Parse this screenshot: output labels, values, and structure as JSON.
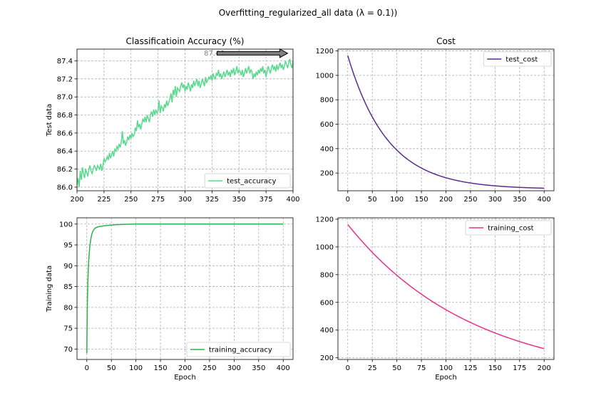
{
  "figure": {
    "suptitle": "Overfitting_regularized_all data (λ = 0.1))"
  },
  "chart_data": [
    {
      "id": "p1",
      "type": "line",
      "title": "Classificatioin Accuracy (%)",
      "xlabel": "",
      "ylabel": "Test data",
      "xlim": [
        200,
        400
      ],
      "ylim": [
        85.96,
        87.53
      ],
      "xticks": [
        200,
        225,
        250,
        275,
        300,
        325,
        350,
        375,
        400
      ],
      "yticks": [
        86.0,
        86.2,
        86.4,
        86.6,
        86.8,
        87.0,
        87.2,
        87.4
      ],
      "ytick_decimals": 1,
      "grid": true,
      "legend": "lower right",
      "series": [
        {
          "name": "test_accuracy",
          "color": "#59d98e",
          "x_start": 200,
          "x_step": 1,
          "values": [
            86.02,
            86.1,
            86.0,
            86.18,
            86.08,
            86.22,
            86.15,
            86.1,
            86.2,
            86.16,
            86.12,
            86.2,
            86.24,
            86.18,
            86.15,
            86.2,
            86.24,
            86.22,
            86.18,
            86.24,
            86.22,
            86.2,
            86.26,
            86.18,
            86.24,
            86.32,
            86.28,
            86.3,
            86.34,
            86.3,
            86.38,
            86.32,
            86.36,
            86.4,
            86.34,
            86.42,
            86.4,
            86.45,
            86.42,
            86.48,
            86.44,
            86.5,
            86.62,
            86.48,
            86.52,
            86.46,
            86.5,
            86.56,
            86.52,
            86.58,
            86.54,
            86.6,
            86.56,
            86.58,
            86.66,
            86.62,
            86.74,
            86.66,
            86.7,
            86.64,
            86.7,
            86.76,
            86.72,
            86.78,
            86.72,
            86.8,
            86.76,
            86.72,
            86.8,
            86.84,
            86.78,
            86.86,
            86.8,
            86.86,
            86.82,
            86.84,
            86.96,
            86.82,
            86.9,
            86.88,
            86.84,
            86.92,
            86.88,
            86.96,
            86.9,
            86.94,
            86.98,
            87.04,
            86.94,
            87.08,
            87.02,
            87.12,
            87.0,
            87.1,
            87.08,
            87.06,
            87.12,
            87.16,
            87.1,
            87.14,
            87.06,
            87.12,
            87.08,
            87.16,
            87.12,
            87.06,
            87.14,
            87.1,
            87.18,
            87.12,
            87.16,
            87.2,
            87.12,
            87.18,
            87.1,
            87.14,
            87.2,
            87.16,
            87.12,
            87.22,
            87.16,
            87.18,
            87.22,
            87.2,
            87.24,
            87.18,
            87.26,
            87.22,
            87.2,
            87.26,
            87.24,
            87.3,
            87.22,
            87.26,
            87.2,
            87.24,
            87.28,
            87.22,
            87.26,
            87.3,
            87.24,
            87.28,
            87.22,
            87.3,
            87.26,
            87.32,
            87.24,
            87.28,
            87.34,
            87.26,
            87.3,
            87.28,
            87.24,
            87.3,
            87.22,
            87.26,
            87.32,
            87.26,
            87.3,
            87.34,
            87.26,
            87.3,
            87.28,
            87.2,
            87.26,
            87.22,
            87.28,
            87.24,
            87.3,
            87.26,
            87.32,
            87.28,
            87.34,
            87.26,
            87.3,
            87.22,
            87.28,
            87.34,
            87.3,
            87.26,
            87.32,
            87.36,
            87.3,
            87.34,
            87.28,
            87.36,
            87.3,
            87.34,
            87.38,
            87.32,
            87.36,
            87.3,
            87.34,
            87.4,
            87.36,
            87.32,
            87.38,
            87.42,
            87.36,
            87.32,
            87.4,
            87.36,
            87.34,
            87.46,
            87.38,
            87.34,
            87.4,
            87.36,
            87.38
          ]
        }
      ],
      "annotations": [
        {
          "text": "87.46",
          "x": 327,
          "y": 87.46,
          "arrow_to": [
            395,
            87.46
          ]
        }
      ]
    },
    {
      "id": "p2",
      "type": "line",
      "title": "Cost",
      "xlabel": "",
      "ylabel": "",
      "xlim": [
        -20,
        420
      ],
      "ylim": [
        55,
        1215
      ],
      "xticks": [
        0,
        50,
        100,
        150,
        200,
        250,
        300,
        350,
        400
      ],
      "yticks": [
        200,
        400,
        600,
        800,
        1000,
        1200
      ],
      "ytick_decimals": 0,
      "grid": true,
      "legend": "upper right",
      "series": [
        {
          "name": "test_cost",
          "color": "#5b2d8a",
          "x_start": 0,
          "x_step": 1,
          "curve": {
            "kind": "exp_decay",
            "count": 401,
            "asymptote": 68,
            "initial": 1162,
            "rate": 0.0123
          }
        }
      ]
    },
    {
      "id": "p3",
      "type": "line",
      "title": "",
      "xlabel": "Epoch",
      "ylabel": "Training data",
      "xlim": [
        -20,
        420
      ],
      "ylim": [
        67.5,
        101.5
      ],
      "xticks": [
        0,
        50,
        100,
        150,
        200,
        250,
        300,
        350,
        400
      ],
      "yticks": [
        70,
        75,
        80,
        85,
        90,
        95,
        100
      ],
      "ytick_decimals": 0,
      "grid": true,
      "legend": "lower right",
      "series": [
        {
          "name": "training_accuracy",
          "color": "#2bb24c",
          "x": [
            0,
            1,
            2,
            3,
            4,
            6,
            8,
            10,
            12,
            15,
            18,
            22,
            26,
            30,
            40,
            50,
            60,
            70,
            80,
            100,
            150,
            200,
            250,
            300,
            350,
            400
          ],
          "values": [
            69.0,
            80.0,
            86.0,
            89.0,
            91.5,
            94.5,
            96.3,
            97.5,
            98.2,
            98.8,
            99.1,
            99.3,
            99.4,
            99.5,
            99.65,
            99.75,
            99.85,
            99.9,
            99.95,
            100.0,
            100.0,
            100.0,
            100.0,
            100.0,
            100.0,
            100.0
          ]
        }
      ]
    },
    {
      "id": "p4",
      "type": "line",
      "title": "",
      "xlabel": "Epoch",
      "ylabel": "",
      "xlim": [
        -10,
        210
      ],
      "ylim": [
        188,
        1210
      ],
      "xticks": [
        0,
        25,
        50,
        75,
        100,
        125,
        150,
        175,
        200
      ],
      "yticks": [
        200,
        400,
        600,
        800,
        1000,
        1200
      ],
      "ytick_decimals": 0,
      "grid": true,
      "legend": "upper right",
      "series": [
        {
          "name": "training_cost",
          "color": "#e8318a",
          "x_start": 0,
          "x_step": 1,
          "curve": {
            "kind": "exp_decay",
            "count": 201,
            "asymptote": 30,
            "initial": 1162,
            "rate": 0.00784
          }
        }
      ]
    }
  ]
}
